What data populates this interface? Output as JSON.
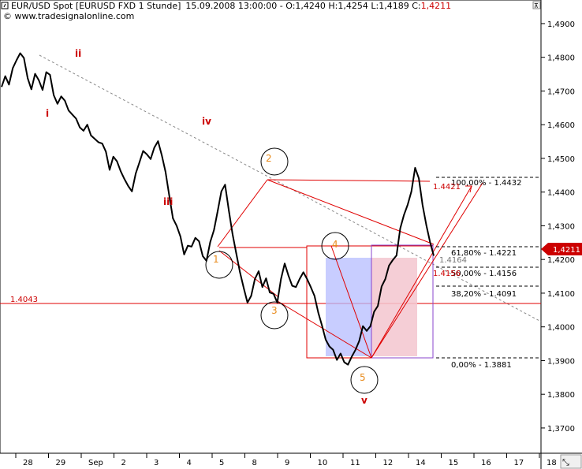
{
  "header": {
    "symbol": "EUR/USD Spot [EURUSD FXD  1 Stunde]",
    "quote": "15.09.2008 13:00:00 - O:1,4240 H:1,4254 L:1,4189 C:",
    "close": "1,4211",
    "source": "© www.tradesignalonline.com"
  },
  "colors": {
    "price": "#000000",
    "lines": "#e00000",
    "box_blue": "#b6bcff",
    "box_pink": "#f3c6cf",
    "box_outline": "#8844cc",
    "trend": "#888888",
    "price_tag": "#cc0000",
    "wave_orange": "#e88a1a",
    "wave_red": "#cc0000"
  },
  "chart_data": {
    "type": "line",
    "series": [
      {
        "values": [
          1.4712,
          1.4744,
          1.4719,
          1.4768,
          1.4791,
          1.4812,
          1.4798,
          1.4738,
          1.4705,
          1.4751,
          1.4732,
          1.4703,
          1.4756,
          1.4748,
          1.4688,
          1.4662,
          1.4684,
          1.4671,
          1.4642,
          1.463,
          1.4618,
          1.4592,
          1.4582,
          1.46,
          1.4568,
          1.4558,
          1.4548,
          1.4544,
          1.452,
          1.4466,
          1.4505,
          1.4491,
          1.4461,
          1.4438,
          1.4418,
          1.4402,
          1.4455,
          1.4488,
          1.4522,
          1.4512,
          1.4498,
          1.4532,
          1.4551,
          1.451,
          1.446,
          1.439,
          1.4322,
          1.43,
          1.4268,
          1.4215,
          1.4241,
          1.4238,
          1.4264,
          1.4254,
          1.421,
          1.4196,
          1.4252,
          1.4287,
          1.4343,
          1.4402,
          1.4422,
          1.4345,
          1.4275,
          1.4218,
          1.4162,
          1.4115,
          1.4072,
          1.4092,
          1.4142,
          1.4165,
          1.4118,
          1.4144,
          1.4102,
          1.4098,
          1.4072,
          1.4142,
          1.4188,
          1.4152,
          1.4122,
          1.4118,
          1.4142,
          1.4162,
          1.4142,
          1.4118,
          1.4092,
          1.4042,
          1.4004,
          1.3962,
          1.3942,
          1.3932,
          1.3902,
          1.3921,
          1.3895,
          1.3888,
          1.3912,
          1.3932,
          1.3958,
          1.4002,
          1.3988,
          1.4002,
          1.4045,
          1.4062,
          1.412,
          1.4142,
          1.4182,
          1.4198,
          1.4212,
          1.4292,
          1.4332,
          1.4362,
          1.4402,
          1.4472,
          1.4441,
          1.4362,
          1.4302,
          1.4252,
          1.4211
        ]
      }
    ],
    "x_ticks": [
      "28",
      "29",
      "Sep",
      "2",
      "3",
      "4",
      "5",
      "8",
      "9",
      "10",
      "11",
      "12",
      "14",
      "15",
      "16",
      "17",
      "18"
    ],
    "y_ticks": [
      "1,4900",
      "1,4800",
      "1,4700",
      "1,4600",
      "1,4500",
      "1,4400",
      "1,4300",
      "1,4200",
      "1,4100",
      "1,4000",
      "1,3900",
      "1,3800",
      "1,3700"
    ],
    "ylim": [
      1.3625,
      1.497
    ],
    "current_price": "1,4211",
    "level_1_4043": "1.4043",
    "wave_labels_red": [
      "i",
      "ii",
      "iii",
      "iv",
      "v"
    ],
    "wave_labels_orange": [
      "1",
      "2",
      "3",
      "4",
      "5"
    ],
    "fib_labels": [
      "100,00% - 1.4432",
      "61,80% - 1.4221",
      "50,00% - 1.4156",
      "38,20% - 1.4091",
      "0,00% - 1.3881"
    ],
    "target_labels": [
      "1.4421",
      "1.4164",
      "1.4156"
    ]
  }
}
